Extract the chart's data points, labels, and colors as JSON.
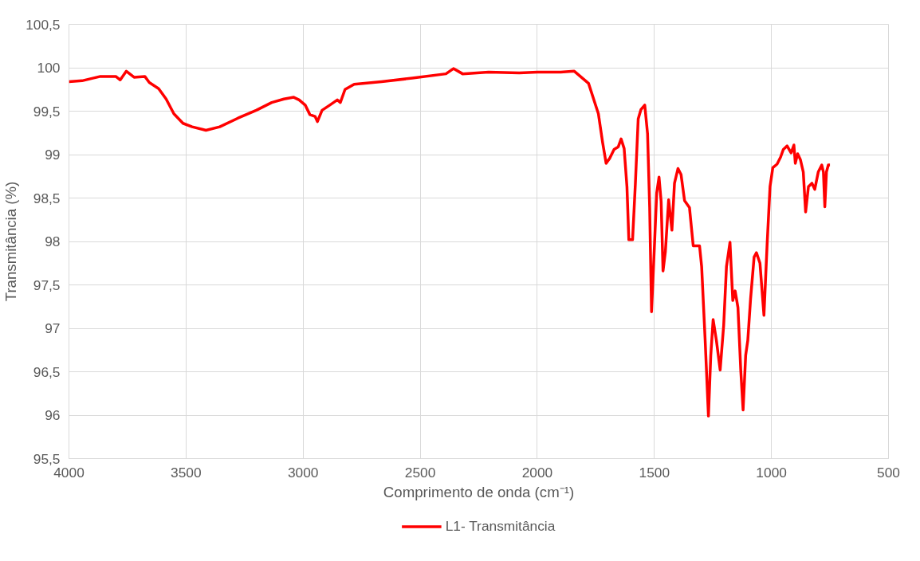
{
  "chart_data": {
    "type": "line",
    "xlabel": "Comprimento de onda (cm⁻¹)",
    "ylabel": "Transmitância (%)",
    "xlim": [
      4000,
      500
    ],
    "xticks": [
      4000,
      3500,
      3000,
      2500,
      2000,
      1500,
      1000,
      500
    ],
    "ylim": [
      95.5,
      100.5
    ],
    "yticks": [
      {
        "value": 95.5,
        "label": "95,5"
      },
      96,
      {
        "value": 96.5,
        "label": "96,5"
      },
      97,
      {
        "value": 97.5,
        "label": "97,5"
      },
      98,
      {
        "value": 98.5,
        "label": "98,5"
      },
      99,
      {
        "value": 99.5,
        "label": "99,5"
      },
      100,
      {
        "value": 100.5,
        "label": "100,5"
      }
    ],
    "grid": true,
    "legend": "bottom",
    "marker": "none",
    "line_style": "solid",
    "x": [
      4000,
      3944,
      3866,
      3800,
      3781,
      3755,
      3722,
      3676,
      3657,
      3617,
      3585,
      3552,
      3513,
      3474,
      3415,
      3356,
      3278,
      3200,
      3134,
      3082,
      3040,
      3017,
      2991,
      2971,
      2949,
      2939,
      2919,
      2886,
      2854,
      2841,
      2821,
      2782,
      2665,
      2534,
      2390,
      2358,
      2338,
      2319,
      2208,
      2077,
      1999,
      1900,
      1842,
      1781,
      1739,
      1721,
      1706,
      1690,
      1672,
      1654,
      1642,
      1629,
      1617,
      1609,
      1593,
      1581,
      1569,
      1557,
      1541,
      1529,
      1520,
      1512,
      1499,
      1490,
      1480,
      1471,
      1463,
      1453,
      1439,
      1425,
      1414,
      1399,
      1386,
      1371,
      1350,
      1334,
      1307,
      1298,
      1283,
      1269,
      1259,
      1249,
      1235,
      1219,
      1204,
      1192,
      1177,
      1165,
      1155,
      1143,
      1131,
      1121,
      1110,
      1101,
      1089,
      1074,
      1064,
      1049,
      1032,
      1018,
      1006,
      994,
      976,
      961,
      949,
      933,
      916,
      904,
      898,
      888,
      876,
      864,
      854,
      842,
      827,
      815,
      800,
      785,
      778,
      772,
      765,
      757,
      750
    ],
    "series": [
      {
        "name": "L1- Transmitância",
        "color": "#ff0000",
        "values": [
          99.84,
          99.85,
          99.9,
          99.9,
          99.86,
          99.96,
          99.89,
          99.9,
          99.83,
          99.76,
          99.64,
          99.47,
          99.36,
          99.32,
          99.28,
          99.32,
          99.42,
          99.51,
          99.6,
          99.64,
          99.66,
          99.63,
          99.57,
          99.46,
          99.44,
          99.38,
          99.51,
          99.57,
          99.63,
          99.6,
          99.75,
          99.81,
          99.84,
          99.88,
          99.93,
          99.99,
          99.96,
          99.93,
          99.95,
          99.94,
          99.95,
          99.95,
          99.96,
          99.82,
          99.47,
          99.14,
          98.9,
          98.96,
          99.06,
          99.09,
          99.18,
          99.07,
          98.63,
          98.02,
          98.02,
          98.67,
          99.41,
          99.52,
          99.57,
          99.24,
          98.39,
          97.19,
          97.99,
          98.56,
          98.74,
          98.46,
          97.66,
          97.88,
          98.48,
          98.13,
          98.67,
          98.84,
          98.77,
          98.47,
          98.39,
          97.95,
          97.95,
          97.71,
          96.86,
          95.99,
          96.69,
          97.1,
          96.86,
          96.52,
          97.03,
          97.71,
          97.99,
          97.32,
          97.43,
          97.24,
          96.52,
          96.06,
          96.69,
          96.86,
          97.34,
          97.82,
          97.87,
          97.75,
          97.15,
          97.99,
          98.63,
          98.85,
          98.89,
          98.97,
          99.06,
          99.1,
          99.02,
          99.11,
          98.9,
          99.01,
          98.94,
          98.8,
          98.34,
          98.63,
          98.67,
          98.6,
          98.8,
          98.88,
          98.8,
          98.4,
          98.8,
          98.88,
          98.88
        ]
      }
    ]
  }
}
